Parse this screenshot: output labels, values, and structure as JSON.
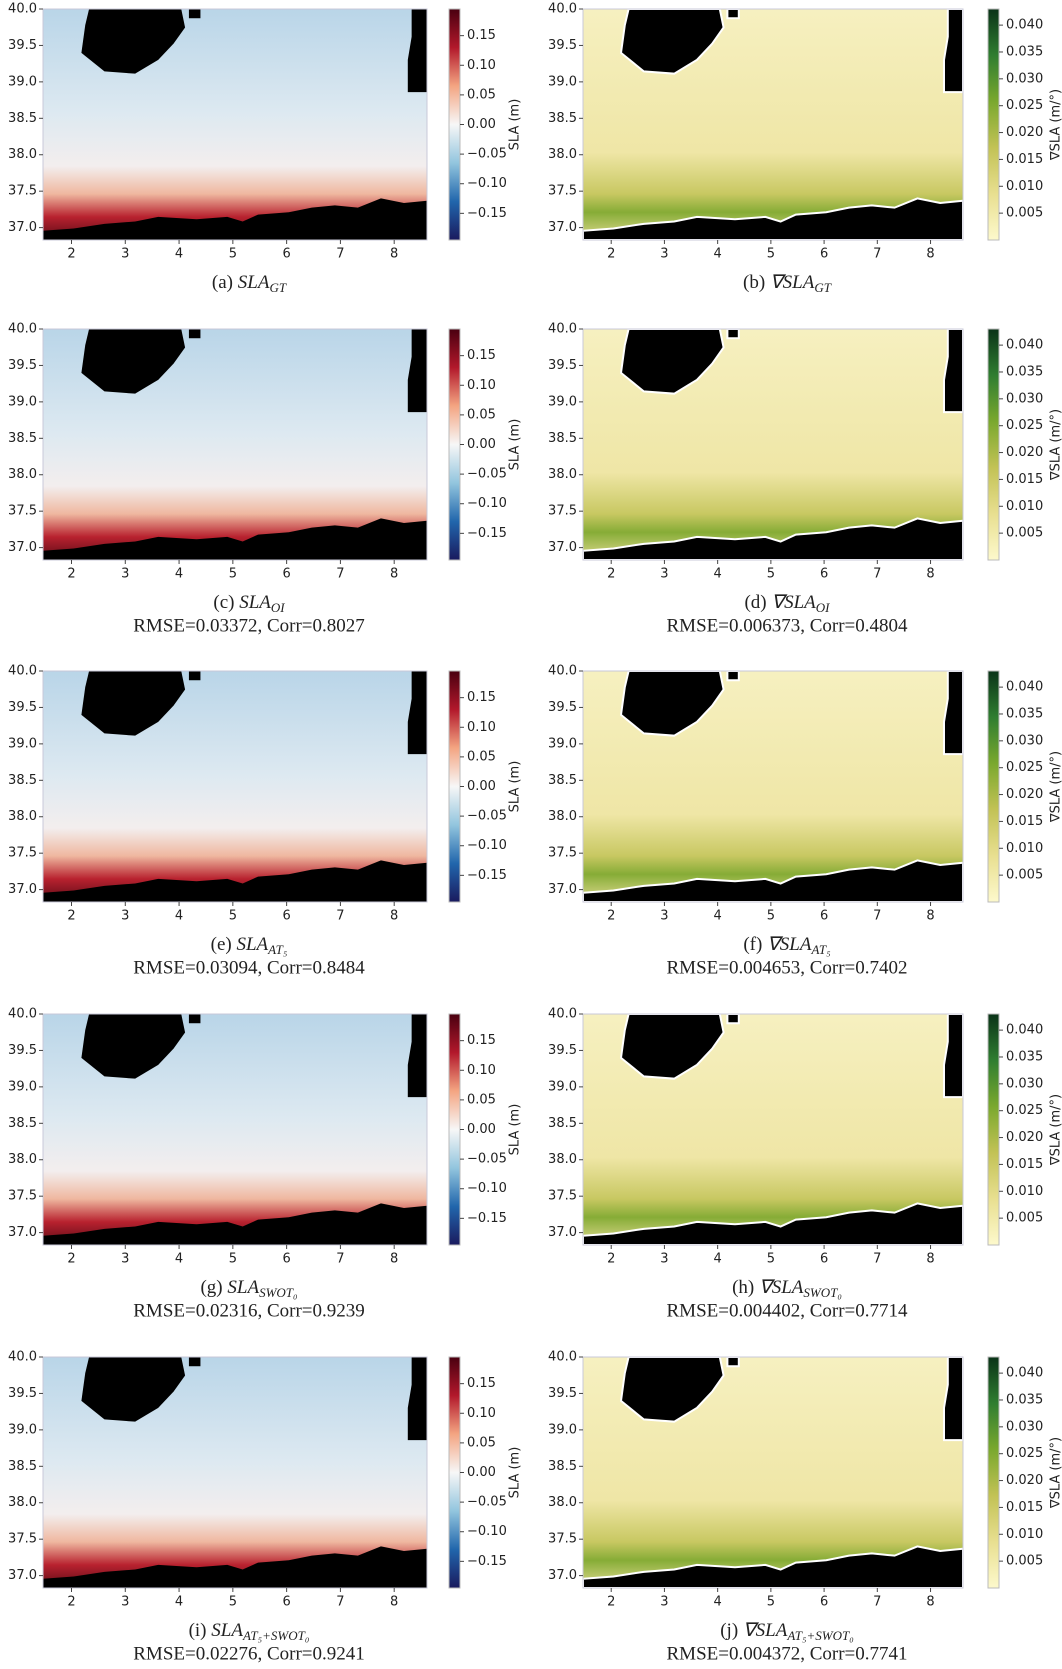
{
  "chart_data": [
    {
      "type": "heatmap",
      "caption": {
        "label": "(a)",
        "symbol": "SLA",
        "subscript": "GT"
      },
      "xlim": [
        1.47,
        8.61
      ],
      "ylim": [
        36.83,
        40.0
      ],
      "xticks": [
        2,
        3,
        4,
        5,
        6,
        7,
        8
      ],
      "yticks": [
        {
          "value": 37,
          "label": "37.0"
        },
        37.5,
        {
          "value": 38,
          "label": "38.0"
        },
        38.5,
        {
          "value": 39,
          "label": "39.0"
        },
        39.5,
        {
          "value": 40,
          "label": "40.0"
        }
      ],
      "colorbar": {
        "label": "SLA (m)",
        "clim": [
          -0.195,
          0.195
        ],
        "ticks": [
          {
            "value": -0.15,
            "label": "−0.15"
          },
          {
            "value": -0.1,
            "label": "−0.10"
          },
          {
            "value": -0.05,
            "label": "−0.05"
          },
          {
            "value": 0,
            "label": "0.00"
          },
          0.05,
          {
            "value": 0.1,
            "label": "0.10"
          },
          0.15
        ],
        "colormap": [
          "#1a1a5e",
          "#2166ac",
          "#92c5de",
          "#f7f7f7",
          "#f4a582",
          "#b2182b",
          "#4a0010"
        ]
      }
    },
    {
      "type": "heatmap",
      "caption": {
        "label": "(b)",
        "symbol": "∇SLA",
        "subscript": "GT"
      },
      "xlim": [
        1.47,
        8.61
      ],
      "ylim": [
        36.83,
        40.0
      ],
      "xticks": [
        2,
        3,
        4,
        5,
        6,
        7,
        8
      ],
      "yticks": [
        {
          "value": 37,
          "label": "37.0"
        },
        37.5,
        {
          "value": 38,
          "label": "38.0"
        },
        38.5,
        {
          "value": 39,
          "label": "39.0"
        },
        39.5,
        {
          "value": 40,
          "label": "40.0"
        }
      ],
      "colorbar": {
        "label": "∇SLA (m/°)",
        "clim": [
          0,
          0.043
        ],
        "ticks": [
          0.005,
          {
            "value": 0.01,
            "label": "0.010"
          },
          0.015,
          {
            "value": 0.02,
            "label": "0.020"
          },
          0.025,
          {
            "value": 0.03,
            "label": "0.030"
          },
          0.035,
          {
            "value": 0.04,
            "label": "0.040"
          }
        ],
        "colormap": [
          "#fdf9cc",
          "#e8df90",
          "#c2c255",
          "#7aa82e",
          "#2f7d30",
          "#0a3318"
        ]
      }
    },
    {
      "type": "heatmap",
      "caption": {
        "label": "(c)",
        "symbol": "SLA",
        "subscript": "OI"
      },
      "metrics": "RMSE=0.03372, Corr=0.8027",
      "xlim": [
        1.47,
        8.61
      ],
      "ylim": [
        36.83,
        40.0
      ],
      "xticks": [
        2,
        3,
        4,
        5,
        6,
        7,
        8
      ],
      "yticks": [
        {
          "value": 37,
          "label": "37.0"
        },
        37.5,
        {
          "value": 38,
          "label": "38.0"
        },
        38.5,
        {
          "value": 39,
          "label": "39.0"
        },
        39.5,
        {
          "value": 40,
          "label": "40.0"
        }
      ],
      "colorbar": {
        "label": "SLA (m)",
        "clim": [
          -0.195,
          0.195
        ],
        "ticks": [
          {
            "value": -0.15,
            "label": "−0.15"
          },
          {
            "value": -0.1,
            "label": "−0.10"
          },
          {
            "value": -0.05,
            "label": "−0.05"
          },
          {
            "value": 0,
            "label": "0.00"
          },
          0.05,
          {
            "value": 0.1,
            "label": "0.10"
          },
          0.15
        ],
        "colormap": [
          "#1a1a5e",
          "#2166ac",
          "#92c5de",
          "#f7f7f7",
          "#f4a582",
          "#b2182b",
          "#4a0010"
        ]
      }
    },
    {
      "type": "heatmap",
      "caption": {
        "label": "(d)",
        "symbol": "∇SLA",
        "subscript": "OI"
      },
      "metrics": "RMSE=0.006373, Corr=0.4804",
      "xlim": [
        1.47,
        8.61
      ],
      "ylim": [
        36.83,
        40.0
      ],
      "xticks": [
        2,
        3,
        4,
        5,
        6,
        7,
        8
      ],
      "yticks": [
        {
          "value": 37,
          "label": "37.0"
        },
        37.5,
        {
          "value": 38,
          "label": "38.0"
        },
        38.5,
        {
          "value": 39,
          "label": "39.0"
        },
        39.5,
        {
          "value": 40,
          "label": "40.0"
        }
      ],
      "colorbar": {
        "label": "∇SLA (m/°)",
        "clim": [
          0,
          0.043
        ],
        "ticks": [
          0.005,
          {
            "value": 0.01,
            "label": "0.010"
          },
          0.015,
          {
            "value": 0.02,
            "label": "0.020"
          },
          0.025,
          {
            "value": 0.03,
            "label": "0.030"
          },
          0.035,
          {
            "value": 0.04,
            "label": "0.040"
          }
        ],
        "colormap": [
          "#fdf9cc",
          "#e8df90",
          "#c2c255",
          "#7aa82e",
          "#2f7d30",
          "#0a3318"
        ]
      }
    },
    {
      "type": "heatmap",
      "caption": {
        "label": "(e)",
        "symbol": "SLA",
        "subscript": "AT₅"
      },
      "metrics": "RMSE=0.03094, Corr=0.8484",
      "xlim": [
        1.47,
        8.61
      ],
      "ylim": [
        36.83,
        40.0
      ],
      "xticks": [
        2,
        3,
        4,
        5,
        6,
        7,
        8
      ],
      "yticks": [
        {
          "value": 37,
          "label": "37.0"
        },
        37.5,
        {
          "value": 38,
          "label": "38.0"
        },
        38.5,
        {
          "value": 39,
          "label": "39.0"
        },
        39.5,
        {
          "value": 40,
          "label": "40.0"
        }
      ],
      "colorbar": {
        "label": "SLA (m)",
        "clim": [
          -0.195,
          0.195
        ],
        "ticks": [
          {
            "value": -0.15,
            "label": "−0.15"
          },
          {
            "value": -0.1,
            "label": "−0.10"
          },
          {
            "value": -0.05,
            "label": "−0.05"
          },
          {
            "value": 0,
            "label": "0.00"
          },
          0.05,
          {
            "value": 0.1,
            "label": "0.10"
          },
          0.15
        ],
        "colormap": [
          "#1a1a5e",
          "#2166ac",
          "#92c5de",
          "#f7f7f7",
          "#f4a582",
          "#b2182b",
          "#4a0010"
        ]
      }
    },
    {
      "type": "heatmap",
      "caption": {
        "label": "(f)",
        "symbol": "∇SLA",
        "subscript": "AT₅"
      },
      "metrics": "RMSE=0.004653, Corr=0.7402",
      "xlim": [
        1.47,
        8.61
      ],
      "ylim": [
        36.83,
        40.0
      ],
      "xticks": [
        2,
        3,
        4,
        5,
        6,
        7,
        8
      ],
      "yticks": [
        {
          "value": 37,
          "label": "37.0"
        },
        37.5,
        {
          "value": 38,
          "label": "38.0"
        },
        38.5,
        {
          "value": 39,
          "label": "39.0"
        },
        39.5,
        {
          "value": 40,
          "label": "40.0"
        }
      ],
      "colorbar": {
        "label": "∇SLA (m/°)",
        "clim": [
          0,
          0.043
        ],
        "ticks": [
          0.005,
          {
            "value": 0.01,
            "label": "0.010"
          },
          0.015,
          {
            "value": 0.02,
            "label": "0.020"
          },
          0.025,
          {
            "value": 0.03,
            "label": "0.030"
          },
          0.035,
          {
            "value": 0.04,
            "label": "0.040"
          }
        ],
        "colormap": [
          "#fdf9cc",
          "#e8df90",
          "#c2c255",
          "#7aa82e",
          "#2f7d30",
          "#0a3318"
        ]
      }
    },
    {
      "type": "heatmap",
      "caption": {
        "label": "(g)",
        "symbol": "SLA",
        "subscript": "SWOT₀"
      },
      "metrics": "RMSE=0.02316, Corr=0.9239",
      "xlim": [
        1.47,
        8.61
      ],
      "ylim": [
        36.83,
        40.0
      ],
      "xticks": [
        2,
        3,
        4,
        5,
        6,
        7,
        8
      ],
      "yticks": [
        {
          "value": 37,
          "label": "37.0"
        },
        37.5,
        {
          "value": 38,
          "label": "38.0"
        },
        38.5,
        {
          "value": 39,
          "label": "39.0"
        },
        39.5,
        {
          "value": 40,
          "label": "40.0"
        }
      ],
      "colorbar": {
        "label": "SLA (m)",
        "clim": [
          -0.195,
          0.195
        ],
        "ticks": [
          {
            "value": -0.15,
            "label": "−0.15"
          },
          {
            "value": -0.1,
            "label": "−0.10"
          },
          {
            "value": -0.05,
            "label": "−0.05"
          },
          {
            "value": 0,
            "label": "0.00"
          },
          0.05,
          {
            "value": 0.1,
            "label": "0.10"
          },
          0.15
        ],
        "colormap": [
          "#1a1a5e",
          "#2166ac",
          "#92c5de",
          "#f7f7f7",
          "#f4a582",
          "#b2182b",
          "#4a0010"
        ]
      }
    },
    {
      "type": "heatmap",
      "caption": {
        "label": "(h)",
        "symbol": "∇SLA",
        "subscript": "SWOT₀"
      },
      "metrics": "RMSE=0.004402, Corr=0.7714",
      "xlim": [
        1.47,
        8.61
      ],
      "ylim": [
        36.83,
        40.0
      ],
      "xticks": [
        2,
        3,
        4,
        5,
        6,
        7,
        8
      ],
      "yticks": [
        {
          "value": 37,
          "label": "37.0"
        },
        37.5,
        {
          "value": 38,
          "label": "38.0"
        },
        38.5,
        {
          "value": 39,
          "label": "39.0"
        },
        39.5,
        {
          "value": 40,
          "label": "40.0"
        }
      ],
      "colorbar": {
        "label": "∇SLA (m/°)",
        "clim": [
          0,
          0.043
        ],
        "ticks": [
          0.005,
          {
            "value": 0.01,
            "label": "0.010"
          },
          0.015,
          {
            "value": 0.02,
            "label": "0.020"
          },
          0.025,
          {
            "value": 0.03,
            "label": "0.030"
          },
          0.035,
          {
            "value": 0.04,
            "label": "0.040"
          }
        ],
        "colormap": [
          "#fdf9cc",
          "#e8df90",
          "#c2c255",
          "#7aa82e",
          "#2f7d30",
          "#0a3318"
        ]
      }
    },
    {
      "type": "heatmap",
      "caption": {
        "label": "(i)",
        "symbol": "SLA",
        "subscript": "AT₅+SWOT₀"
      },
      "metrics": "RMSE=0.02276, Corr=0.9241",
      "xlim": [
        1.47,
        8.61
      ],
      "ylim": [
        36.83,
        40.0
      ],
      "xticks": [
        2,
        3,
        4,
        5,
        6,
        7,
        8
      ],
      "yticks": [
        {
          "value": 37,
          "label": "37.0"
        },
        37.5,
        {
          "value": 38,
          "label": "38.0"
        },
        38.5,
        {
          "value": 39,
          "label": "39.0"
        },
        39.5,
        {
          "value": 40,
          "label": "40.0"
        }
      ],
      "colorbar": {
        "label": "SLA (m)",
        "clim": [
          -0.195,
          0.195
        ],
        "ticks": [
          {
            "value": -0.15,
            "label": "−0.15"
          },
          {
            "value": -0.1,
            "label": "−0.10"
          },
          {
            "value": -0.05,
            "label": "−0.05"
          },
          {
            "value": 0,
            "label": "0.00"
          },
          0.05,
          {
            "value": 0.1,
            "label": "0.10"
          },
          0.15
        ],
        "colormap": [
          "#1a1a5e",
          "#2166ac",
          "#92c5de",
          "#f7f7f7",
          "#f4a582",
          "#b2182b",
          "#4a0010"
        ]
      }
    },
    {
      "type": "heatmap",
      "caption": {
        "label": "(j)",
        "symbol": "∇SLA",
        "subscript": "AT₅+SWOT₀"
      },
      "metrics": "RMSE=0.004372, Corr=0.7741",
      "xlim": [
        1.47,
        8.61
      ],
      "ylim": [
        36.83,
        40.0
      ],
      "xticks": [
        2,
        3,
        4,
        5,
        6,
        7,
        8
      ],
      "yticks": [
        {
          "value": 37,
          "label": "37.0"
        },
        37.5,
        {
          "value": 38,
          "label": "38.0"
        },
        38.5,
        {
          "value": 39,
          "label": "39.0"
        },
        39.5,
        {
          "value": 40,
          "label": "40.0"
        }
      ],
      "colorbar": {
        "label": "∇SLA (m/°)",
        "clim": [
          0,
          0.043
        ],
        "ticks": [
          0.005,
          {
            "value": 0.01,
            "label": "0.010"
          },
          0.015,
          {
            "value": 0.02,
            "label": "0.020"
          },
          0.025,
          {
            "value": 0.03,
            "label": "0.030"
          },
          0.035,
          {
            "value": 0.04,
            "label": "0.040"
          }
        ],
        "colormap": [
          "#fdf9cc",
          "#e8df90",
          "#c2c255",
          "#7aa82e",
          "#2f7d30",
          "#0a3318"
        ]
      }
    }
  ]
}
